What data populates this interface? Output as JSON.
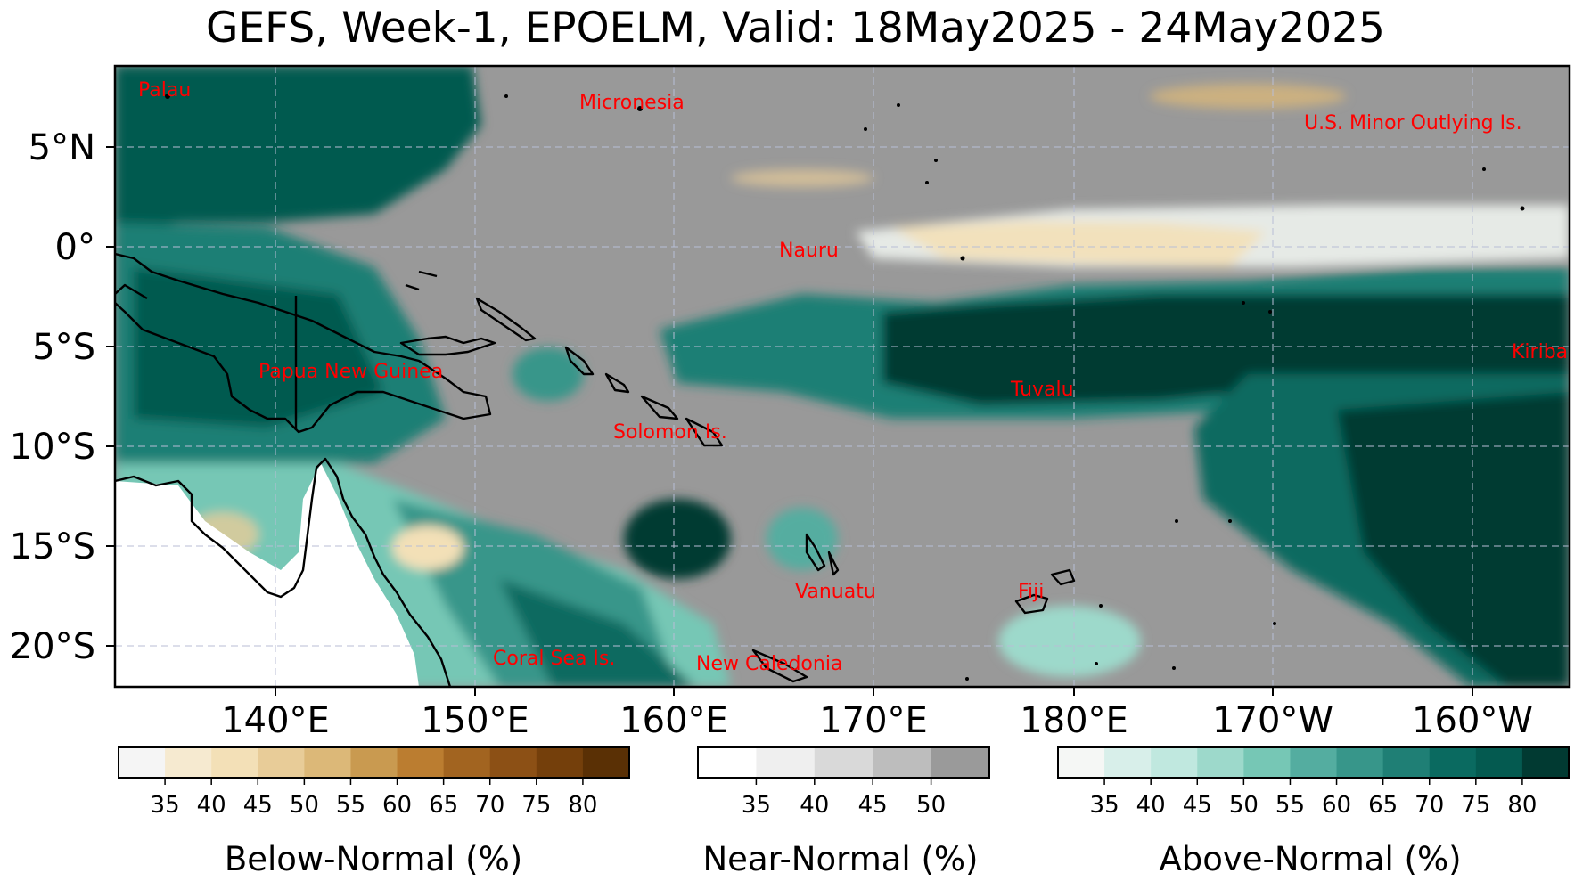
{
  "title": "GEFS, Week-1, EPOELM, Valid: 18May2025 - 24May2025",
  "map": {
    "lat_ticks": [
      "5°N",
      "0°",
      "5°S",
      "10°S",
      "15°S",
      "20°S"
    ],
    "lon_ticks": [
      "140°E",
      "150°E",
      "160°E",
      "170°E",
      "180°E",
      "170°W",
      "160°W"
    ],
    "labels": [
      {
        "name": "label-palau",
        "text": "Palau"
      },
      {
        "name": "label-micronesia",
        "text": "Micronesia"
      },
      {
        "name": "label-us-minor",
        "text": "U.S. Minor Outlying Is."
      },
      {
        "name": "label-nauru",
        "text": "Nauru"
      },
      {
        "name": "label-kiribati",
        "text": "Kiribati"
      },
      {
        "name": "label-png",
        "text": "Papua New Guinea"
      },
      {
        "name": "label-tuvalu",
        "text": "Tuvalu"
      },
      {
        "name": "label-solomon",
        "text": "Solomon Is."
      },
      {
        "name": "label-vanuatu",
        "text": "Vanuatu"
      },
      {
        "name": "label-fiji",
        "text": "Fiji"
      },
      {
        "name": "label-coral-sea",
        "text": "Coral Sea Is."
      },
      {
        "name": "label-new-caledonia",
        "text": "New Caledonia"
      }
    ],
    "label_color": "#ff0000"
  },
  "colorbars": [
    {
      "name": "below-normal",
      "label": "Below-Normal (%)",
      "ticks": [
        "35",
        "40",
        "45",
        "50",
        "55",
        "60",
        "65",
        "70",
        "75",
        "80"
      ],
      "colors": [
        "#f5f5f5",
        "#f6ead0",
        "#f3e0b7",
        "#e8cc98",
        "#dcb878",
        "#c99a50",
        "#bb7d30",
        "#a26420",
        "#8c5015",
        "#743f0b",
        "#5a3005"
      ]
    },
    {
      "name": "near-normal",
      "label": "Near-Normal (%)",
      "ticks": [
        "35",
        "40",
        "45",
        "50"
      ],
      "colors": [
        "#ffffff",
        "#efefef",
        "#d9d9d9",
        "#bdbdbd",
        "#9a9a9a"
      ]
    },
    {
      "name": "above-normal",
      "label": "Above-Normal (%)",
      "ticks": [
        "35",
        "40",
        "45",
        "50",
        "55",
        "60",
        "65",
        "70",
        "75",
        "80"
      ],
      "colors": [
        "#f5f7f5",
        "#d8efea",
        "#c0e8df",
        "#9dd9cb",
        "#76c7b5",
        "#54ada0",
        "#37968a",
        "#1f7f75",
        "#0a6a60",
        "#045a50",
        "#013a32"
      ]
    }
  ]
}
